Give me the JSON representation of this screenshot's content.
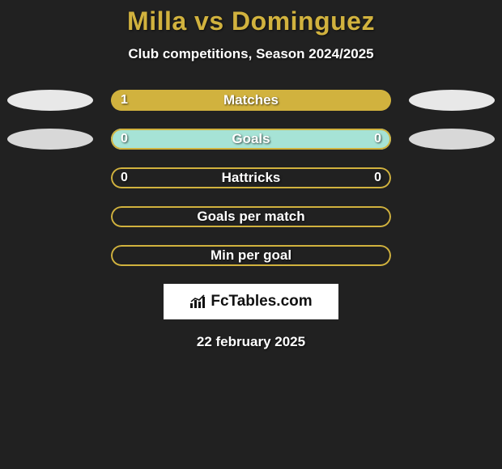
{
  "title": "Milla vs Dominguez",
  "subtitle": "Club competitions, Season 2024/2025",
  "date": "22 february 2025",
  "logo_text": "FcTables.com",
  "colors": {
    "background": "#212121",
    "accent": "#d1b23e",
    "text": "#ffffff",
    "pill_light": "#f0f0f0",
    "pill_dark": "#cccccc",
    "fill_goals": "#a6e3d6",
    "bar_border": "#d1b23e"
  },
  "rows": [
    {
      "label": "Matches",
      "left_val": "1",
      "right_val": "",
      "left_pill_color": "#e8e8e8",
      "right_pill_color": "#e8e8e8",
      "fill_left_pct": 100,
      "fill_left_color": "#d1b23e",
      "fill_right_pct": 0,
      "fill_right_color": "",
      "bg": "transparent"
    },
    {
      "label": "Goals",
      "left_val": "0",
      "right_val": "0",
      "left_pill_color": "#d8d8d8",
      "right_pill_color": "#d8d8d8",
      "fill_left_pct": 100,
      "fill_left_color": "#a6e3d6",
      "fill_right_pct": 0,
      "fill_right_color": "",
      "bg": "#a6e3d6"
    },
    {
      "label": "Hattricks",
      "left_val": "0",
      "right_val": "0",
      "left_pill_color": "",
      "right_pill_color": "",
      "fill_left_pct": 0,
      "fill_left_color": "",
      "fill_right_pct": 0,
      "fill_right_color": "",
      "bg": "transparent"
    },
    {
      "label": "Goals per match",
      "left_val": "",
      "right_val": "",
      "left_pill_color": "",
      "right_pill_color": "",
      "fill_left_pct": 0,
      "fill_left_color": "",
      "fill_right_pct": 0,
      "fill_right_color": "",
      "bg": "transparent"
    },
    {
      "label": "Min per goal",
      "left_val": "",
      "right_val": "",
      "left_pill_color": "",
      "right_pill_color": "",
      "fill_left_pct": 0,
      "fill_left_color": "",
      "fill_right_pct": 0,
      "fill_right_color": "",
      "bg": "transparent"
    }
  ]
}
